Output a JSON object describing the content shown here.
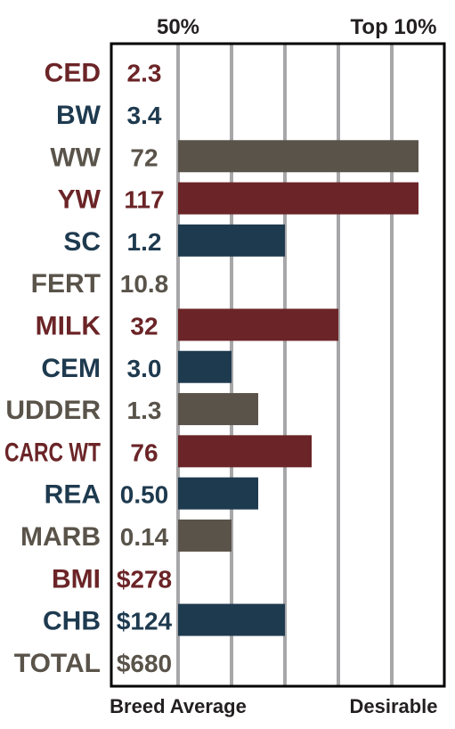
{
  "header": {
    "left_label": "50%",
    "right_label": "Top 10%"
  },
  "footer": {
    "left_label": "Breed Average",
    "right_label": "Desirable"
  },
  "colors": {
    "red": "#6b2427",
    "blue": "#1e3a4f",
    "gray": "#59534a",
    "gridline": "#a7a7a9",
    "border": "#000000"
  },
  "chart_data": {
    "type": "bar",
    "orientation": "horizontal",
    "xlim": [
      0,
      9
    ],
    "gridlines": [
      0,
      2,
      4,
      6,
      8
    ],
    "grid": true,
    "categories": [
      "CED",
      "BW",
      "WW",
      "YW",
      "SC",
      "FERT",
      "MILK",
      "CEM",
      "UDDER",
      "CARC WT",
      "REA",
      "MARB",
      "BMI",
      "CHB",
      "TOTAL"
    ],
    "values": [
      0,
      0,
      9,
      9,
      4,
      0,
      6,
      2,
      3,
      5,
      3,
      2,
      0,
      4,
      0
    ],
    "value_labels": [
      "2.3",
      "3.4",
      "72",
      "117",
      "1.2",
      "10.8",
      "32",
      "3.0",
      "1.3",
      "76",
      "0.50",
      "0.14",
      "$278",
      "$124",
      "$680"
    ],
    "row_colors": [
      "red",
      "blue",
      "gray",
      "red",
      "blue",
      "gray",
      "red",
      "blue",
      "gray",
      "red",
      "blue",
      "gray",
      "red",
      "blue",
      "gray"
    ]
  }
}
